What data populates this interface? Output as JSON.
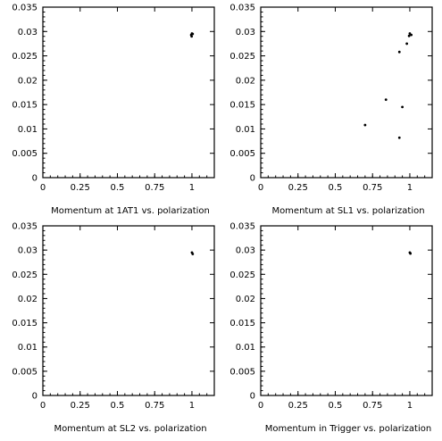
{
  "chart_data": [
    {
      "type": "scatter",
      "title": "",
      "xlabel": "Momentum at 1AT1 vs. polarization",
      "ylabel": "",
      "xlim": [
        0,
        1.15
      ],
      "ylim": [
        0,
        0.035
      ],
      "xticks": [
        0,
        0.25,
        0.5,
        0.75,
        1
      ],
      "xtick_labels": [
        "0",
        "0.25",
        "0.5",
        "0.75",
        "1"
      ],
      "yticks": [
        0,
        0.005,
        0.01,
        0.015,
        0.02,
        0.025,
        0.03,
        0.035
      ],
      "ytick_labels": [
        "0",
        "0.005",
        "0.01",
        "0.015",
        "0.02",
        "0.025",
        "0.03",
        "0.035"
      ],
      "grid": false,
      "points": [
        {
          "x": 0.995,
          "y": 0.0293
        },
        {
          "x": 1.0,
          "y": 0.0296
        },
        {
          "x": 0.998,
          "y": 0.029
        },
        {
          "x": 1.005,
          "y": 0.0295
        }
      ]
    },
    {
      "type": "scatter",
      "title": "",
      "xlabel": "Momentum at SL1 vs. polarization",
      "ylabel": "",
      "xlim": [
        0,
        1.15
      ],
      "ylim": [
        0,
        0.035
      ],
      "xticks": [
        0,
        0.25,
        0.5,
        0.75,
        1
      ],
      "xtick_labels": [
        "0",
        "0.25",
        "0.5",
        "0.75",
        "1"
      ],
      "yticks": [
        0,
        0.005,
        0.01,
        0.015,
        0.02,
        0.025,
        0.03,
        0.035
      ],
      "ytick_labels": [
        "0",
        "0.005",
        "0.01",
        "0.015",
        "0.02",
        "0.025",
        "0.03",
        "0.035"
      ],
      "grid": false,
      "points": [
        {
          "x": 1.0,
          "y": 0.0296
        },
        {
          "x": 1.01,
          "y": 0.0293
        },
        {
          "x": 0.995,
          "y": 0.0291
        },
        {
          "x": 0.98,
          "y": 0.0275
        },
        {
          "x": 0.93,
          "y": 0.0258
        },
        {
          "x": 0.84,
          "y": 0.016
        },
        {
          "x": 0.95,
          "y": 0.0145
        },
        {
          "x": 0.7,
          "y": 0.0108
        },
        {
          "x": 0.93,
          "y": 0.0082
        }
      ]
    },
    {
      "type": "scatter",
      "title": "",
      "xlabel": "Momentum at SL2 vs. polarization",
      "ylabel": "",
      "xlim": [
        0,
        1.15
      ],
      "ylim": [
        0,
        0.035
      ],
      "xticks": [
        0,
        0.25,
        0.5,
        0.75,
        1
      ],
      "xtick_labels": [
        "0",
        "0.25",
        "0.5",
        "0.75",
        "1"
      ],
      "yticks": [
        0,
        0.005,
        0.01,
        0.015,
        0.02,
        0.025,
        0.03,
        0.035
      ],
      "ytick_labels": [
        "0",
        "0.005",
        "0.01",
        "0.015",
        "0.02",
        "0.025",
        "0.03",
        "0.035"
      ],
      "grid": false,
      "points": [
        {
          "x": 1.0,
          "y": 0.0295
        },
        {
          "x": 1.005,
          "y": 0.0292
        }
      ]
    },
    {
      "type": "scatter",
      "title": "",
      "xlabel": "Momentum in Trigger vs. polarization",
      "ylabel": "",
      "xlim": [
        0,
        1.15
      ],
      "ylim": [
        0,
        0.035
      ],
      "xticks": [
        0,
        0.25,
        0.5,
        0.75,
        1
      ],
      "xtick_labels": [
        "0",
        "0.25",
        "0.5",
        "0.75",
        "1"
      ],
      "yticks": [
        0,
        0.005,
        0.01,
        0.015,
        0.02,
        0.025,
        0.03,
        0.035
      ],
      "ytick_labels": [
        "0",
        "0.005",
        "0.01",
        "0.015",
        "0.02",
        "0.025",
        "0.03",
        "0.035"
      ],
      "grid": false,
      "points": [
        {
          "x": 1.0,
          "y": 0.0295
        },
        {
          "x": 1.004,
          "y": 0.0293
        }
      ]
    }
  ]
}
